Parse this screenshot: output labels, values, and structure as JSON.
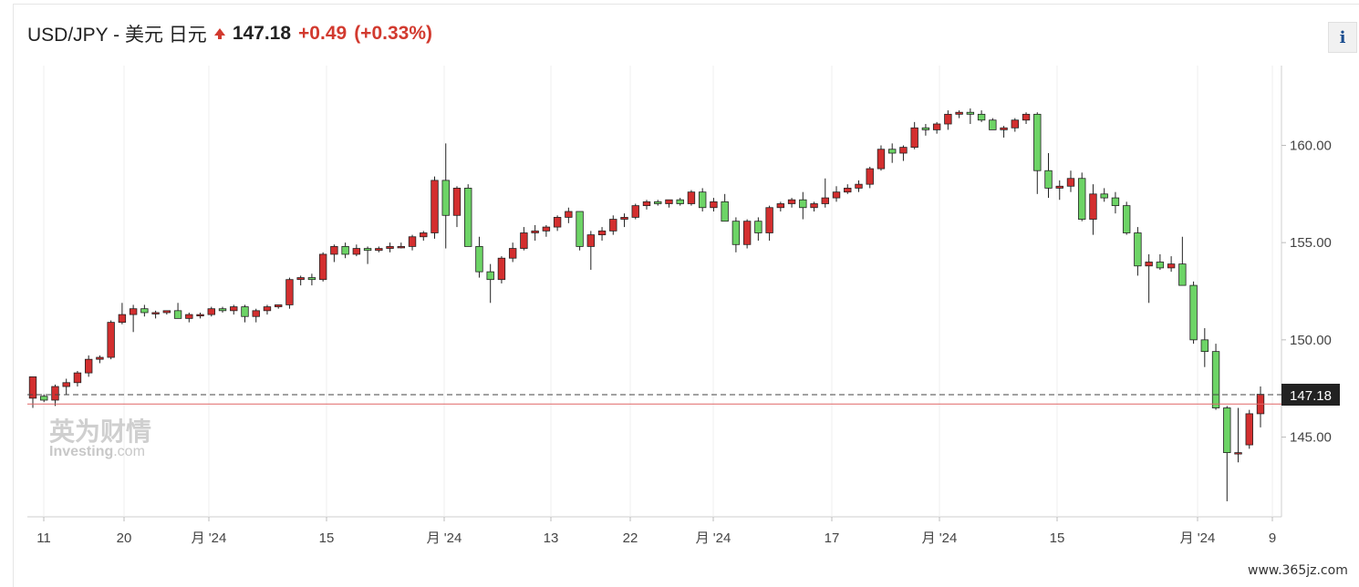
{
  "header": {
    "symbol": "USD/JPY - 美元 日元",
    "price": "147.18",
    "change": "+0.49",
    "change_pct": "(+0.33%)",
    "direction_icon": "arrow-up-icon",
    "accent_up": "#d23a2f"
  },
  "info_button": {
    "label": "i",
    "icon": "info-icon"
  },
  "watermark": {
    "cn": "英为财情",
    "en": "Investing",
    "en_suffix": ".com"
  },
  "site_credit": "www.365jz.com",
  "chart_data": {
    "type": "candlestick",
    "yaxis": {
      "position": "right",
      "ticks": [
        145,
        150,
        155,
        160
      ],
      "tick_labels": [
        "145.00",
        "150.00",
        "155.00",
        "160.00"
      ],
      "ylim": [
        140.9,
        164.1
      ]
    },
    "xaxis": {
      "tick_labels": [
        "11",
        "20",
        "月 '24",
        "15",
        "月 '24",
        "13",
        "22",
        "月 '24",
        "17",
        "月 '24",
        "15",
        "月 '24",
        "9"
      ]
    },
    "last_price": 147.18,
    "last_price_label": "147.18",
    "reference_line": 146.7,
    "grid": "vertical",
    "colors": {
      "up": "#d32f2f",
      "down": "#6dd466",
      "wick": "#222222",
      "ref_line": "#e06666",
      "price_box": "#222222"
    },
    "candles": [
      [
        147.0,
        148.1,
        146.5,
        148.1
      ],
      [
        147.1,
        147.2,
        146.8,
        146.9
      ],
      [
        146.9,
        147.7,
        146.6,
        147.6
      ],
      [
        147.6,
        148.0,
        147.2,
        147.8
      ],
      [
        147.8,
        148.4,
        147.6,
        148.3
      ],
      [
        148.3,
        149.2,
        148.1,
        149.0
      ],
      [
        149.0,
        149.2,
        148.8,
        149.1
      ],
      [
        149.1,
        151.0,
        149.0,
        150.9
      ],
      [
        150.9,
        151.9,
        150.8,
        151.3
      ],
      [
        151.3,
        151.8,
        150.4,
        151.6
      ],
      [
        151.6,
        151.8,
        151.2,
        151.4
      ],
      [
        151.4,
        151.5,
        151.1,
        151.4
      ],
      [
        151.4,
        151.5,
        151.3,
        151.5
      ],
      [
        151.5,
        151.9,
        151.2,
        151.1
      ],
      [
        151.1,
        151.4,
        150.9,
        151.3
      ],
      [
        151.3,
        151.4,
        151.1,
        151.3
      ],
      [
        151.3,
        151.7,
        151.2,
        151.6
      ],
      [
        151.6,
        151.7,
        151.4,
        151.5
      ],
      [
        151.5,
        151.8,
        151.3,
        151.7
      ],
      [
        151.7,
        151.8,
        150.9,
        151.2
      ],
      [
        151.2,
        151.6,
        150.9,
        151.5
      ],
      [
        151.5,
        151.8,
        151.3,
        151.7
      ],
      [
        151.7,
        151.8,
        151.6,
        151.8
      ],
      [
        151.8,
        153.2,
        151.6,
        153.1
      ],
      [
        153.1,
        153.3,
        152.8,
        153.2
      ],
      [
        153.2,
        153.4,
        152.8,
        153.1
      ],
      [
        153.1,
        154.5,
        153.0,
        154.4
      ],
      [
        154.4,
        154.9,
        154.0,
        154.8
      ],
      [
        154.8,
        155.0,
        154.2,
        154.4
      ],
      [
        154.4,
        154.9,
        154.3,
        154.7
      ],
      [
        154.7,
        154.8,
        153.9,
        154.6
      ],
      [
        154.6,
        154.8,
        154.5,
        154.7
      ],
      [
        154.7,
        155.0,
        154.5,
        154.8
      ],
      [
        154.8,
        155.0,
        154.7,
        154.8
      ],
      [
        154.8,
        155.4,
        154.6,
        155.3
      ],
      [
        155.3,
        155.6,
        155.1,
        155.5
      ],
      [
        155.5,
        158.4,
        155.2,
        158.2
      ],
      [
        158.2,
        160.1,
        154.7,
        156.4
      ],
      [
        156.4,
        157.9,
        155.8,
        157.8
      ],
      [
        157.8,
        158.0,
        154.9,
        154.8
      ],
      [
        154.8,
        155.3,
        153.2,
        153.5
      ],
      [
        153.5,
        153.9,
        151.9,
        153.1
      ],
      [
        153.1,
        154.3,
        152.9,
        154.2
      ],
      [
        154.2,
        155.0,
        154.0,
        154.7
      ],
      [
        154.7,
        155.8,
        154.6,
        155.5
      ],
      [
        155.5,
        155.9,
        155.1,
        155.6
      ],
      [
        155.6,
        155.9,
        155.3,
        155.8
      ],
      [
        155.8,
        156.4,
        155.6,
        156.3
      ],
      [
        156.3,
        156.8,
        156.0,
        156.6
      ],
      [
        156.6,
        156.4,
        154.6,
        154.8
      ],
      [
        154.8,
        155.6,
        153.6,
        155.4
      ],
      [
        155.4,
        155.8,
        155.1,
        155.6
      ],
      [
        155.6,
        156.4,
        155.4,
        156.2
      ],
      [
        156.2,
        156.5,
        155.8,
        156.3
      ],
      [
        156.3,
        157.0,
        156.2,
        156.9
      ],
      [
        156.9,
        157.2,
        156.7,
        157.1
      ],
      [
        157.1,
        157.2,
        156.9,
        157.0
      ],
      [
        157.0,
        157.2,
        156.8,
        157.2
      ],
      [
        157.2,
        157.3,
        156.9,
        157.0
      ],
      [
        157.0,
        157.7,
        156.9,
        157.6
      ],
      [
        157.6,
        157.8,
        156.6,
        156.8
      ],
      [
        156.8,
        157.3,
        156.6,
        157.1
      ],
      [
        157.1,
        157.5,
        156.2,
        156.1
      ],
      [
        156.1,
        156.3,
        154.5,
        154.9
      ],
      [
        154.9,
        156.2,
        154.7,
        156.1
      ],
      [
        156.1,
        156.3,
        155.1,
        155.5
      ],
      [
        155.5,
        156.9,
        155.1,
        156.8
      ],
      [
        156.8,
        157.1,
        156.6,
        157.0
      ],
      [
        157.0,
        157.3,
        156.8,
        157.2
      ],
      [
        157.2,
        157.6,
        156.2,
        156.8
      ],
      [
        156.8,
        157.1,
        156.6,
        157.0
      ],
      [
        157.0,
        158.3,
        156.8,
        157.3
      ],
      [
        157.3,
        157.9,
        157.1,
        157.6
      ],
      [
        157.6,
        158.0,
        157.5,
        157.8
      ],
      [
        157.8,
        158.2,
        157.6,
        158.0
      ],
      [
        158.0,
        158.9,
        157.8,
        158.8
      ],
      [
        158.8,
        160.0,
        158.7,
        159.8
      ],
      [
        159.8,
        160.1,
        159.1,
        159.6
      ],
      [
        159.6,
        160.0,
        159.2,
        159.9
      ],
      [
        159.9,
        161.2,
        159.8,
        160.9
      ],
      [
        160.9,
        161.1,
        160.5,
        160.8
      ],
      [
        160.8,
        161.2,
        160.6,
        161.1
      ],
      [
        161.1,
        161.8,
        160.8,
        161.6
      ],
      [
        161.6,
        161.8,
        161.4,
        161.7
      ],
      [
        161.7,
        161.9,
        161.1,
        161.6
      ],
      [
        161.6,
        161.8,
        161.2,
        161.3
      ],
      [
        161.3,
        161.4,
        160.9,
        160.8
      ],
      [
        160.8,
        161.0,
        160.4,
        160.9
      ],
      [
        160.9,
        161.4,
        160.7,
        161.3
      ],
      [
        161.3,
        161.7,
        161.1,
        161.6
      ],
      [
        161.6,
        161.7,
        157.5,
        158.7
      ],
      [
        158.7,
        159.6,
        157.3,
        157.8
      ],
      [
        157.8,
        158.2,
        157.2,
        157.9
      ],
      [
        157.9,
        158.7,
        157.6,
        158.3
      ],
      [
        158.3,
        158.6,
        156.1,
        156.2
      ],
      [
        156.2,
        158.0,
        155.4,
        157.5
      ],
      [
        157.5,
        157.8,
        157.1,
        157.3
      ],
      [
        157.3,
        157.6,
        156.5,
        156.9
      ],
      [
        156.9,
        157.1,
        155.4,
        155.5
      ],
      [
        155.5,
        155.8,
        153.3,
        153.8
      ],
      [
        153.8,
        154.4,
        151.9,
        154.0
      ],
      [
        154.0,
        154.4,
        153.6,
        153.7
      ],
      [
        153.7,
        154.3,
        153.5,
        153.9
      ],
      [
        153.9,
        155.3,
        152.9,
        152.8
      ],
      [
        152.8,
        153.0,
        149.8,
        150.0
      ],
      [
        150.0,
        150.6,
        148.6,
        149.4
      ],
      [
        149.4,
        149.8,
        146.4,
        146.5
      ],
      [
        146.5,
        146.6,
        141.7,
        144.2
      ],
      [
        144.2,
        146.5,
        143.7,
        144.2
      ],
      [
        144.6,
        146.4,
        144.4,
        146.2
      ],
      [
        146.2,
        147.6,
        145.5,
        147.2
      ]
    ]
  }
}
